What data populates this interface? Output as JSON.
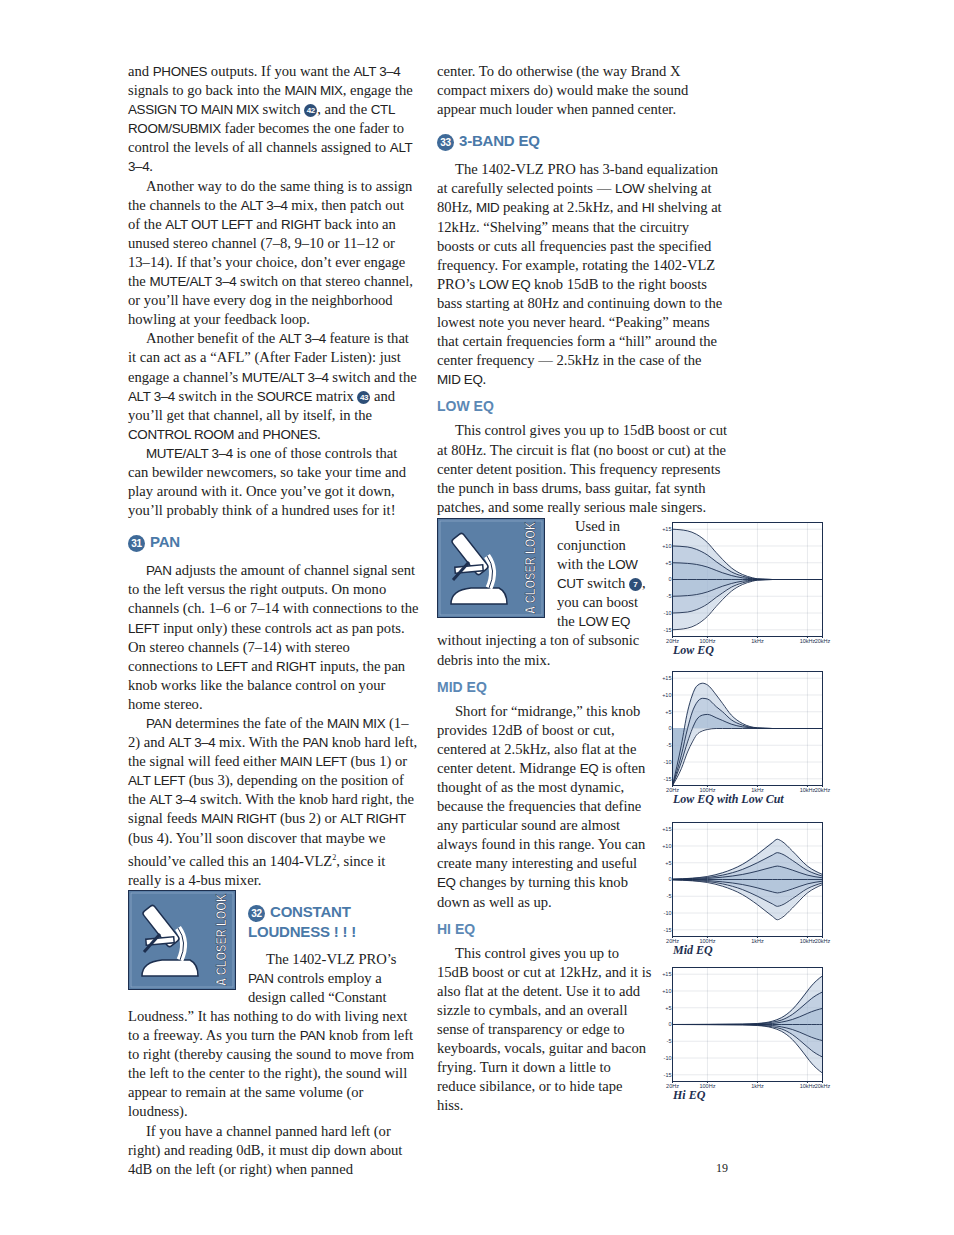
{
  "page": {
    "number": "19",
    "closer_look": "A CLOSER LOOK",
    "left": [
      {
        "p": [
          "and ",
          {
            "sans": "PHONES"
          },
          " outputs. If you want the ",
          {
            "sans": "ALT 3–4"
          },
          " signals to go back into the ",
          {
            "sans": "MAIN MIX"
          },
          ", engage the ",
          {
            "sans": "ASSIGN TO MAIN MIX"
          },
          " switch ",
          {
            "num": "42"
          },
          ", and the ",
          {
            "sans": "CTL ROOM/SUBMIX"
          },
          " fader becomes the one fader to control the levels of all channels assigned to ",
          {
            "sans": "ALT 3–4"
          },
          "."
        ],
        "indent": false
      },
      {
        "p": [
          "Another way to do the same thing is to assign the channels to the ",
          {
            "sans": "ALT 3–4"
          },
          " mix, then patch out of the ",
          {
            "sans": "ALT OUT LEFT"
          },
          " and ",
          {
            "sans": "RIGHT"
          },
          " back into an unused stereo channel (7–8, 9–10 or 11–12 or 13–14). If that’s your choice, don’t ever engage the ",
          {
            "sans": "MUTE/ALT 3–4"
          },
          " switch on that stereo channel, or you’ll have every dog in the neighborhood howling at your feedback loop."
        ],
        "indent": true
      },
      {
        "p": [
          "Another benefit of the ",
          {
            "sans": "ALT 3–4"
          },
          " feature is that it can act as a “AFL” (After Fader Listen): just engage a channel’s ",
          {
            "sans": "MUTE/ALT 3–4"
          },
          " switch and the ",
          {
            "sans": "ALT 3–4"
          },
          " switch in the ",
          {
            "sans": "SOURCE"
          },
          " matrix ",
          {
            "num": "43"
          },
          " and you’ll get that channel, all by itself, in the ",
          {
            "sans": "CONTROL ROOM"
          },
          " and ",
          {
            "sans": "PHONES"
          },
          "."
        ],
        "indent": true
      },
      {
        "p": [
          {
            "sans": "MUTE/ALT 3–4"
          },
          " is one of those controls that can bewilder newcomers, so take your time and play around with it. Once you’ve got it down, you’ll probably think of a hundred uses for it!"
        ],
        "indent": true
      },
      {
        "heading": {
          "num": "31",
          "text": "PAN"
        },
        "closer_look": false
      },
      {
        "p": [
          {
            "sans": "PAN"
          },
          " adjusts the amount of channel signal sent to the left versus the right outputs. On mono channels (ch. 1–6 or 7–14 with connections to the ",
          {
            "sans": "LEFT"
          },
          " input only) these controls act as pan pots. On stereo channels (7–14) with stereo connections to ",
          {
            "sans": "LEFT"
          },
          " and ",
          {
            "sans": "RIGHT"
          },
          " inputs, the pan knob works like the balance control on your home stereo."
        ],
        "indent": true
      },
      {
        "p": [
          {
            "sans": "PAN"
          },
          " determines the fate of the ",
          {
            "sans": "MAIN MIX"
          },
          " (1–2) and ",
          {
            "sans": "ALT 3–4"
          },
          " mix. With the ",
          {
            "sans": "PAN"
          },
          " knob hard left, the signal will feed either ",
          {
            "sans": "MAIN LEFT"
          },
          " (bus 1) or ",
          {
            "sans": "ALT LEFT"
          },
          " (bus 3), depending on the position of the ",
          {
            "sans": "ALT 3–4"
          },
          " switch. With the knob hard right, the signal feeds ",
          {
            "sans": "MAIN RIGHT"
          },
          " (bus 2) or ",
          {
            "sans": "ALT RIGHT"
          },
          " (bus 4). You’ll soon discover that maybe we should’ve called this an 1404-VLZ",
          {
            "sup": "2"
          },
          ", since it really is a 4-bus mixer."
        ],
        "indent": true
      },
      {
        "heading": {
          "num": "32",
          "text": "CONSTANT LOUDNESS ! ! !"
        },
        "closer_look": true
      },
      {
        "p": [
          "The 1402-VLZ PRO’s ",
          {
            "sans": "PAN"
          },
          " controls employ a design called “Constant Loudness.” It has nothing to do with living next to a freeway. As you turn the ",
          {
            "sans": "PAN"
          },
          " knob from left to right (thereby causing the sound to move from the left to the center to the right), the sound will appear to remain at the same volume (or loudness)."
        ],
        "indent": true
      },
      {
        "p": [
          "If you have a channel panned hard left (or right) and reading 0dB, it must dip down about 4dB on the left (or right) when panned"
        ],
        "indent": true
      }
    ],
    "right": [
      {
        "p": [
          "center. To do otherwise (the way Brand X compact mixers do) would make the sound appear much louder when panned center."
        ],
        "indent": false
      },
      {
        "heading": {
          "num": "33",
          "text": "3-BAND EQ"
        },
        "closer_look": true
      },
      {
        "p": [
          "The 1402-VLZ PRO has 3-band equalization at carefully selected points — ",
          {
            "sans": "LOW"
          },
          " shelving at 80Hz, ",
          {
            "sans": "MID"
          },
          " peaking at 2.5kHz, and ",
          {
            "sans": "HI"
          },
          " shelving at 12kHz. “Shelving” means that the circuitry boosts or cuts all frequencies past the specified frequency. For example, rotating the 1402-VLZ PRO’s ",
          {
            "sans": "LOW EQ"
          },
          " knob 15dB to the right boosts bass starting at 80Hz and continuing down to the lowest note you never heard. “Peaking” means that certain frequencies form a “hill” around the center frequency — 2.5kHz in the case of the ",
          {
            "sans": "MID EQ"
          },
          "."
        ],
        "indent": true
      },
      {
        "sub": "LOW EQ"
      },
      {
        "p": [
          "This control gives you up to 15dB boost or cut at 80Hz. The circuit is flat (no boost or cut) at the center detent position. This frequency represents the punch in bass drums, bass guitar, fat synth patches, and some really serious male singers."
        ],
        "indent": true
      },
      {
        "p": [
          "Used in conjunction with the ",
          {
            "sans": "LOW CUT"
          },
          " switch ",
          {
            "num": "7"
          },
          ", you can boost the ",
          {
            "sans": "LOW EQ"
          },
          " without injecting a ton of subsonic debris into the mix."
        ],
        "indent": true
      },
      {
        "sub": "MID EQ"
      },
      {
        "p": [
          "Short for “midrange,” this knob provides 12dB of boost or cut, centered at 2.5kHz, also flat at the center detent. Midrange ",
          {
            "sans": "EQ"
          },
          " is often thought of as the most dynamic, because the frequencies that define any particular sound are almost always found in this range. You can create many interesting and useful ",
          {
            "sans": "EQ"
          },
          " changes by turning this knob down as well as up."
        ],
        "indent": true
      },
      {
        "sub": "HI EQ"
      },
      {
        "p": [
          "This control gives you up to 15dB boost or cut at 12kHz, and it is also flat at the detent. Use it to add sizzle to cymbals, and an overall sense of transparency or edge to keyboards, vocals, guitar and bacon frying. Turn it down a little to reduce sibilance, or to hide tape hiss."
        ],
        "indent": true
      }
    ]
  },
  "chart_data": [
    {
      "type": "line",
      "title": "Low EQ",
      "log": "x",
      "grid": true,
      "color": "#9fb6d1",
      "x": [
        20,
        40,
        60,
        100,
        150,
        200,
        300,
        500,
        800,
        1000,
        2000,
        20000
      ],
      "series": [
        {
          "color": "#1d2f4f",
          "values": [
            15,
            14.5,
            13.5,
            11,
            8,
            6,
            3.5,
            1.5,
            0.5,
            0.2,
            0,
            0
          ]
        },
        {
          "color": "#1d2f4f",
          "values": [
            10,
            9.7,
            9,
            7.3,
            5.3,
            4,
            2.3,
            1,
            0.3,
            0.1,
            0,
            0
          ]
        },
        {
          "color": "#1d2f4f",
          "values": [
            5,
            4.8,
            4.5,
            3.7,
            2.7,
            2,
            1.2,
            0.5,
            0.2,
            0.1,
            0,
            0
          ]
        },
        {
          "color": "#1d2f4f",
          "values": [
            0,
            0,
            0,
            0,
            0,
            0,
            0,
            0,
            0,
            0,
            0,
            0
          ]
        },
        {
          "color": "#1d2f4f",
          "values": [
            -5,
            -4.8,
            -4.5,
            -3.7,
            -2.7,
            -2,
            -1.2,
            -0.5,
            -0.2,
            -0.1,
            0,
            0
          ]
        },
        {
          "color": "#1d2f4f",
          "values": [
            -10,
            -9.7,
            -9,
            -7.3,
            -5.3,
            -4,
            -2.3,
            -1,
            -0.3,
            -0.1,
            0,
            0
          ]
        },
        {
          "color": "#1d2f4f",
          "values": [
            -15,
            -14.5,
            -13.5,
            -11,
            -8,
            -6,
            -3.5,
            -1.5,
            -0.5,
            -0.2,
            0,
            0
          ]
        }
      ],
      "xlim": [
        20,
        20000
      ],
      "ylim": [
        -17,
        17
      ],
      "xticks": [
        {
          "value": 20,
          "label": "20Hz"
        },
        {
          "value": 100,
          "label": "100Hz"
        },
        {
          "value": 1000,
          "label": "1kHz"
        },
        {
          "value": 10000,
          "label": "10kHz"
        },
        {
          "value": 20000,
          "label": "20kHz"
        }
      ],
      "yticks": [
        {
          "value": 15,
          "label": "+15"
        },
        {
          "value": 10,
          "label": "+10"
        },
        {
          "value": 5,
          "label": "+5"
        },
        0,
        -5,
        -10,
        -15
      ]
    },
    {
      "type": "line",
      "title": "Low EQ with Low Cut",
      "log": "x",
      "grid": true,
      "color": "#9fb6d1",
      "x": [
        20,
        30,
        40,
        50,
        60,
        80,
        100,
        150,
        200,
        300,
        500,
        1000,
        2000,
        20000
      ],
      "series": [
        {
          "color": "#1d2f4f",
          "values": [
            -17,
            -5,
            5,
            10,
            12.5,
            13.5,
            13,
            10,
            7.5,
            4,
            1.5,
            0.2,
            0,
            0
          ]
        },
        {
          "color": "#1d2f4f",
          "values": [
            -17,
            -8,
            0,
            5,
            7.5,
            9,
            8.8,
            6.5,
            5,
            2.6,
            1,
            0.1,
            0,
            0
          ]
        },
        {
          "color": "#1d2f4f",
          "values": [
            -17,
            -10,
            -4,
            0,
            2.5,
            4,
            4.2,
            3.2,
            2.4,
            1.3,
            0.5,
            0.1,
            0,
            0
          ]
        },
        {
          "color": "#1d2f4f",
          "values": [
            -17,
            -12,
            -7,
            -4,
            -2,
            -0.7,
            -0.3,
            0,
            0,
            0,
            0,
            0,
            0,
            0
          ]
        }
      ],
      "xlim": [
        20,
        20000
      ],
      "ylim": [
        -17,
        17
      ],
      "xticks": [
        {
          "value": 20,
          "label": "20Hz"
        },
        {
          "value": 100,
          "label": "100Hz"
        },
        {
          "value": 1000,
          "label": "1kHz"
        },
        {
          "value": 10000,
          "label": "10kHz"
        },
        {
          "value": 20000,
          "label": "20kHz"
        }
      ],
      "yticks": [
        {
          "value": 15,
          "label": "+15"
        },
        {
          "value": 10,
          "label": "+10"
        },
        {
          "value": 5,
          "label": "+5"
        },
        0,
        -5,
        -10,
        -15
      ]
    },
    {
      "type": "line",
      "title": "Mid EQ",
      "log": "x",
      "grid": true,
      "color": "#9fb6d1",
      "x": [
        20,
        50,
        100,
        200,
        500,
        1000,
        2000,
        2500,
        3000,
        5000,
        10000,
        20000
      ],
      "series": [
        {
          "color": "#1d2f4f",
          "values": [
            0.1,
            0.4,
            0.9,
            2,
            4.5,
            7.5,
            11,
            12,
            11.5,
            8.5,
            4,
            1.5
          ]
        },
        {
          "color": "#1d2f4f",
          "values": [
            0.1,
            0.3,
            0.6,
            1.3,
            3,
            5,
            7.3,
            8,
            7.7,
            5.7,
            2.7,
            1
          ]
        },
        {
          "color": "#1d2f4f",
          "values": [
            0,
            0.1,
            0.3,
            0.7,
            1.5,
            2.5,
            3.7,
            4,
            3.8,
            2.8,
            1.3,
            0.5
          ]
        },
        {
          "color": "#1d2f4f",
          "values": [
            0,
            0,
            0,
            0,
            0,
            0,
            0,
            0,
            0,
            0,
            0,
            0
          ]
        },
        {
          "color": "#1d2f4f",
          "values": [
            0,
            -0.1,
            -0.3,
            -0.7,
            -1.5,
            -2.5,
            -3.7,
            -4,
            -3.8,
            -2.8,
            -1.3,
            -0.5
          ]
        },
        {
          "color": "#1d2f4f",
          "values": [
            -0.1,
            -0.3,
            -0.6,
            -1.3,
            -3,
            -5,
            -7.3,
            -8,
            -7.7,
            -5.7,
            -2.7,
            -1
          ]
        },
        {
          "color": "#1d2f4f",
          "values": [
            -0.1,
            -0.4,
            -0.9,
            -2,
            -4.5,
            -7.5,
            -11,
            -12,
            -11.5,
            -8.5,
            -4,
            -1.5
          ]
        }
      ],
      "xlim": [
        20,
        20000
      ],
      "ylim": [
        -17,
        17
      ],
      "xticks": [
        {
          "value": 20,
          "label": "20Hz"
        },
        {
          "value": 100,
          "label": "100Hz"
        },
        {
          "value": 1000,
          "label": "1kHz"
        },
        {
          "value": 10000,
          "label": "10kHz"
        },
        {
          "value": 20000,
          "label": "20kHz"
        }
      ],
      "yticks": [
        {
          "value": 15,
          "label": "+15"
        },
        {
          "value": 10,
          "label": "+10"
        },
        {
          "value": 5,
          "label": "+5"
        },
        0,
        -5,
        -10,
        -15
      ]
    },
    {
      "type": "line",
      "title": "Hi EQ",
      "log": "x",
      "grid": true,
      "color": "#9fb6d1",
      "x": [
        20,
        500,
        1000,
        2000,
        3000,
        5000,
        7000,
        10000,
        12000,
        15000,
        20000
      ],
      "series": [
        {
          "color": "#1d2f4f",
          "values": [
            0,
            0.1,
            0.3,
            1,
            2,
            4.5,
            7,
            10,
            11.5,
            13,
            14.5
          ]
        },
        {
          "color": "#1d2f4f",
          "values": [
            0,
            0.1,
            0.2,
            0.7,
            1.3,
            3,
            4.7,
            6.7,
            7.7,
            8.7,
            9.7
          ]
        },
        {
          "color": "#1d2f4f",
          "values": [
            0,
            0,
            0.1,
            0.3,
            0.7,
            1.5,
            2.3,
            3.3,
            3.8,
            4.3,
            4.8
          ]
        },
        {
          "color": "#1d2f4f",
          "values": [
            0,
            0,
            0,
            0,
            0,
            0,
            0,
            0,
            0,
            0,
            0
          ]
        },
        {
          "color": "#1d2f4f",
          "values": [
            0,
            0,
            -0.1,
            -0.3,
            -0.7,
            -1.5,
            -2.3,
            -3.3,
            -3.8,
            -4.3,
            -4.8
          ]
        },
        {
          "color": "#1d2f4f",
          "values": [
            0,
            -0.1,
            -0.2,
            -0.7,
            -1.3,
            -3,
            -4.7,
            -6.7,
            -7.7,
            -8.7,
            -9.7
          ]
        },
        {
          "color": "#1d2f4f",
          "values": [
            0,
            -0.1,
            -0.3,
            -1,
            -2,
            -4.5,
            -7,
            -10,
            -11.5,
            -13,
            -14.5
          ]
        }
      ],
      "xlim": [
        20,
        20000
      ],
      "ylim": [
        -17,
        17
      ],
      "xticks": [
        {
          "value": 20,
          "label": "20Hz"
        },
        {
          "value": 100,
          "label": "100Hz"
        },
        {
          "value": 1000,
          "label": "1kHz"
        },
        {
          "value": 10000,
          "label": "10kHz"
        },
        {
          "value": 20000,
          "label": "20kHz"
        }
      ],
      "yticks": [
        {
          "value": 15,
          "label": "+15"
        },
        {
          "value": 10,
          "label": "+10"
        },
        {
          "value": 5,
          "label": "+5"
        },
        0,
        -5,
        -10,
        -15
      ]
    }
  ]
}
